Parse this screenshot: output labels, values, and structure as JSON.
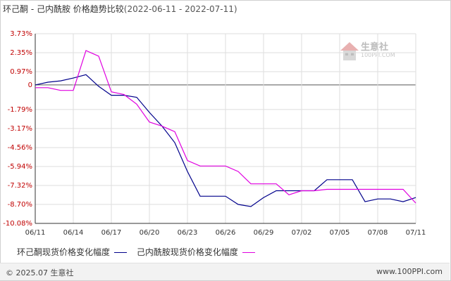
{
  "header": {
    "title": "环己酮 - 己内酰胺 价格趋势比较",
    "range": "(2022-06-11 - 2022-07-11)"
  },
  "watermark": {
    "name": "生意社",
    "url": "100PPI.COM"
  },
  "footer": {
    "copyright": "© 2025.07 生意社",
    "url": "www.100PPI.com"
  },
  "colors": {
    "series1": "#00008b",
    "series2": "#e000e0",
    "axis_labels": "#c00000",
    "grid": "#dddddd"
  },
  "chart_data": {
    "type": "line",
    "title": "环己酮 - 己内酰胺 价格趋势比较",
    "xlabel": "",
    "ylabel": "",
    "ylim": [
      -10.08,
      3.73
    ],
    "yticks": [
      "3.73%",
      "2.35%",
      "0.97%",
      "0",
      "-1.79%",
      "-3.17%",
      "-4.56%",
      "-5.94%",
      "-7.32%",
      "-8.70%",
      "-10.08%"
    ],
    "ytick_values": [
      3.73,
      2.35,
      0.97,
      0,
      -1.79,
      -3.17,
      -4.56,
      -5.94,
      -7.32,
      -8.7,
      -10.08
    ],
    "xticks": [
      "06/11",
      "06/14",
      "06/17",
      "06/20",
      "06/23",
      "06/26",
      "06/29",
      "07/02",
      "07/05",
      "07/08",
      "07/11"
    ],
    "grid": true,
    "x": [
      "06/11",
      "06/12",
      "06/13",
      "06/14",
      "06/15",
      "06/16",
      "06/17",
      "06/18",
      "06/19",
      "06/20",
      "06/21",
      "06/22",
      "06/23",
      "06/24",
      "06/25",
      "06/26",
      "06/27",
      "06/28",
      "06/29",
      "06/30",
      "07/01",
      "07/02",
      "07/03",
      "07/04",
      "07/05",
      "07/06",
      "07/07",
      "07/08",
      "07/09",
      "07/10",
      "07/11"
    ],
    "series": [
      {
        "name": "环己酮现货价格变化幅度",
        "values": [
          0,
          0.2,
          0.3,
          0.5,
          0.75,
          -0.1,
          -0.75,
          -0.75,
          -0.9,
          -2.0,
          -3.0,
          -4.2,
          -6.3,
          -8.1,
          -8.1,
          -8.1,
          -8.7,
          -8.85,
          -8.2,
          -7.7,
          -7.7,
          -7.7,
          -7.7,
          -6.9,
          -6.9,
          -6.9,
          -8.5,
          -8.3,
          -8.3,
          -8.5,
          -8.2
        ]
      },
      {
        "name": "己内酰胺现货价格变化幅度",
        "values": [
          -0.2,
          -0.2,
          -0.4,
          -0.4,
          2.5,
          2.1,
          -0.5,
          -0.7,
          -1.4,
          -2.7,
          -3.0,
          -3.4,
          -5.5,
          -5.9,
          -5.9,
          -5.9,
          -6.3,
          -7.2,
          -7.2,
          -7.2,
          -8.0,
          -7.7,
          -7.7,
          -7.6,
          -7.6,
          -7.6,
          -7.6,
          -7.6,
          -7.6,
          -7.6,
          -8.6
        ]
      }
    ]
  }
}
